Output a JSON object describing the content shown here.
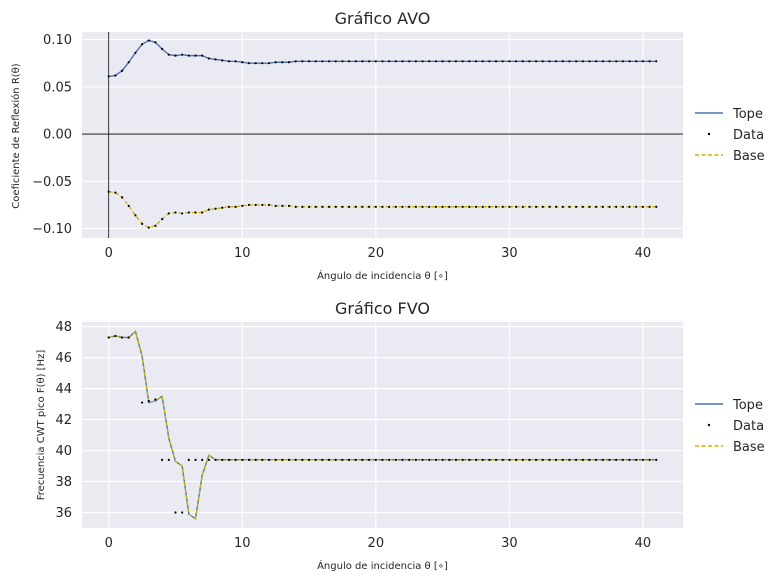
{
  "colors": {
    "background": "#eaeaf2",
    "grid": "#ffffff",
    "tope": "#4c72b0",
    "data": "#000000",
    "base": "#ccb300"
  },
  "chart_data": [
    {
      "type": "line",
      "title": "Gráfico AVO",
      "xlabel": "Ángulo de incidencia θ [∘]",
      "ylabel": "Coeficiente de Reflexión R(θ)",
      "xlim": [
        -2,
        43
      ],
      "ylim": [
        -0.11,
        0.108
      ],
      "xticks": [
        0,
        10,
        20,
        30,
        40
      ],
      "xtick_labels": [
        "0",
        "10",
        "20",
        "30",
        "40"
      ],
      "yticks": [
        0.1,
        0.05,
        0.0,
        -0.05,
        -0.1
      ],
      "ytick_labels": [
        "0.10",
        "0.05",
        "0.00",
        "−0.05",
        "−0.10"
      ],
      "reference_lines": {
        "x": 0,
        "y": 0
      },
      "legend": [
        "Tope",
        "Data",
        "Base"
      ],
      "legend_position": "right",
      "x": [
        0,
        0.5,
        1,
        1.5,
        2,
        2.5,
        3,
        3.5,
        4,
        4.5,
        5,
        5.5,
        6,
        6.5,
        7,
        7.5,
        8,
        8.5,
        9,
        9.5,
        10,
        10.5,
        11,
        11.5,
        12,
        12.5,
        13,
        13.5,
        14,
        14.5,
        15,
        15.5,
        16,
        16.5,
        17,
        17.5,
        18,
        18.5,
        19,
        19.5,
        20,
        20.5,
        21,
        21.5,
        22,
        22.5,
        23,
        23.5,
        24,
        24.5,
        25,
        25.5,
        26,
        26.5,
        27,
        27.5,
        28,
        28.5,
        29,
        29.5,
        30,
        30.5,
        31,
        31.5,
        32,
        32.5,
        33,
        33.5,
        34,
        34.5,
        35,
        35.5,
        36,
        36.5,
        37,
        37.5,
        38,
        38.5,
        39,
        39.5,
        40,
        40.5,
        41
      ],
      "series": [
        {
          "name": "Tope",
          "values": [
            0.061,
            0.062,
            0.067,
            0.076,
            0.086,
            0.095,
            0.099,
            0.097,
            0.09,
            0.084,
            0.083,
            0.084,
            0.083,
            0.083,
            0.083,
            0.08,
            0.079,
            0.078,
            0.077,
            0.077,
            0.076,
            0.075,
            0.075,
            0.075,
            0.075,
            0.076,
            0.076,
            0.076,
            0.077,
            0.077,
            0.077,
            0.077,
            0.077,
            0.077,
            0.077,
            0.077,
            0.077,
            0.077,
            0.077,
            0.077,
            0.077,
            0.077,
            0.077,
            0.077,
            0.077,
            0.077,
            0.077,
            0.077,
            0.077,
            0.077,
            0.077,
            0.077,
            0.077,
            0.077,
            0.077,
            0.077,
            0.077,
            0.077,
            0.077,
            0.077,
            0.077,
            0.077,
            0.077,
            0.077,
            0.077,
            0.077,
            0.077,
            0.077,
            0.077,
            0.077,
            0.077,
            0.077,
            0.077,
            0.077,
            0.077,
            0.077,
            0.077,
            0.077,
            0.077,
            0.077,
            0.077,
            0.077,
            0.077
          ]
        },
        {
          "name": "Base",
          "values": [
            -0.061,
            -0.062,
            -0.067,
            -0.076,
            -0.086,
            -0.095,
            -0.099,
            -0.097,
            -0.09,
            -0.084,
            -0.083,
            -0.084,
            -0.083,
            -0.083,
            -0.083,
            -0.08,
            -0.079,
            -0.078,
            -0.077,
            -0.077,
            -0.076,
            -0.075,
            -0.075,
            -0.075,
            -0.075,
            -0.076,
            -0.076,
            -0.076,
            -0.077,
            -0.077,
            -0.077,
            -0.077,
            -0.077,
            -0.077,
            -0.077,
            -0.077,
            -0.077,
            -0.077,
            -0.077,
            -0.077,
            -0.077,
            -0.077,
            -0.077,
            -0.077,
            -0.077,
            -0.077,
            -0.077,
            -0.077,
            -0.077,
            -0.077,
            -0.077,
            -0.077,
            -0.077,
            -0.077,
            -0.077,
            -0.077,
            -0.077,
            -0.077,
            -0.077,
            -0.077,
            -0.077,
            -0.077,
            -0.077,
            -0.077,
            -0.077,
            -0.077,
            -0.077,
            -0.077,
            -0.077,
            -0.077,
            -0.077,
            -0.077,
            -0.077,
            -0.077,
            -0.077,
            -0.077,
            -0.077,
            -0.077,
            -0.077,
            -0.077,
            -0.077,
            -0.077,
            -0.077
          ]
        }
      ],
      "data_points": {
        "name": "Data",
        "upper": [
          0.061,
          0.062,
          0.067,
          0.076,
          0.086,
          0.095,
          0.099,
          0.097,
          0.09,
          0.084,
          0.083,
          0.084,
          0.083,
          0.083,
          0.083,
          0.08,
          0.079,
          0.078,
          0.077,
          0.077,
          0.076,
          0.075,
          0.075,
          0.075,
          0.075,
          0.076,
          0.076,
          0.076,
          0.077,
          0.077,
          0.077,
          0.077,
          0.077,
          0.077,
          0.077,
          0.077,
          0.077,
          0.077,
          0.077,
          0.077,
          0.077,
          0.077,
          0.077,
          0.077,
          0.077,
          0.077,
          0.077,
          0.077,
          0.077,
          0.077,
          0.077,
          0.077,
          0.077,
          0.077,
          0.077,
          0.077,
          0.077,
          0.077,
          0.077,
          0.077,
          0.077,
          0.077,
          0.077,
          0.077,
          0.077,
          0.077,
          0.077,
          0.077,
          0.077,
          0.077,
          0.077,
          0.077,
          0.077,
          0.077,
          0.077,
          0.077,
          0.077,
          0.077,
          0.077,
          0.077,
          0.077,
          0.077,
          0.077
        ],
        "lower": [
          -0.061,
          -0.062,
          -0.067,
          -0.076,
          -0.086,
          -0.095,
          -0.099,
          -0.097,
          -0.09,
          -0.084,
          -0.083,
          -0.084,
          -0.083,
          -0.083,
          -0.083,
          -0.08,
          -0.079,
          -0.078,
          -0.077,
          -0.077,
          -0.076,
          -0.075,
          -0.075,
          -0.075,
          -0.075,
          -0.076,
          -0.076,
          -0.076,
          -0.077,
          -0.077,
          -0.077,
          -0.077,
          -0.077,
          -0.077,
          -0.077,
          -0.077,
          -0.077,
          -0.077,
          -0.077,
          -0.077,
          -0.077,
          -0.077,
          -0.077,
          -0.077,
          -0.077,
          -0.077,
          -0.077,
          -0.077,
          -0.077,
          -0.077,
          -0.077,
          -0.077,
          -0.077,
          -0.077,
          -0.077,
          -0.077,
          -0.077,
          -0.077,
          -0.077,
          -0.077,
          -0.077,
          -0.077,
          -0.077,
          -0.077,
          -0.077,
          -0.077,
          -0.077,
          -0.077,
          -0.077,
          -0.077,
          -0.077,
          -0.077,
          -0.077,
          -0.077,
          -0.077,
          -0.077,
          -0.077,
          -0.077,
          -0.077,
          -0.077,
          -0.077,
          -0.077,
          -0.077
        ]
      }
    },
    {
      "type": "line",
      "title": "Gráfico FVO",
      "xlabel": "Ángulo de incidencia θ [∘]",
      "ylabel": "Frecuencia CWT pico F(θ) [Hz]",
      "xlim": [
        -2,
        43
      ],
      "ylim": [
        35,
        48.3
      ],
      "xticks": [
        0,
        10,
        20,
        30,
        40
      ],
      "xtick_labels": [
        "0",
        "10",
        "20",
        "30",
        "40"
      ],
      "yticks": [
        48,
        46,
        44,
        42,
        40,
        38,
        36
      ],
      "ytick_labels": [
        "48",
        "46",
        "44",
        "42",
        "40",
        "38",
        "36"
      ],
      "legend": [
        "Tope",
        "Data",
        "Base"
      ],
      "legend_position": "right",
      "x": [
        0,
        0.5,
        1,
        1.5,
        2,
        2.5,
        3,
        3.5,
        4,
        4.5,
        5,
        5.5,
        6,
        6.5,
        7,
        7.5,
        8,
        8.5,
        9,
        9.5,
        10,
        10.5,
        11,
        11.5,
        12,
        12.5,
        13,
        13.5,
        14,
        14.5,
        15,
        15.5,
        16,
        16.5,
        17,
        17.5,
        18,
        18.5,
        19,
        19.5,
        20,
        20.5,
        21,
        21.5,
        22,
        22.5,
        23,
        23.5,
        24,
        24.5,
        25,
        25.5,
        26,
        26.5,
        27,
        27.5,
        28,
        28.5,
        29,
        29.5,
        30,
        30.5,
        31,
        31.5,
        32,
        32.5,
        33,
        33.5,
        34,
        34.5,
        35,
        35.5,
        36,
        36.5,
        37,
        37.5,
        38,
        38.5,
        39,
        39.5,
        40,
        40.5,
        41
      ],
      "series": [
        {
          "name": "Tope",
          "values": [
            47.3,
            47.4,
            47.3,
            47.3,
            47.7,
            46.1,
            43.1,
            43.2,
            43.5,
            40.8,
            39.3,
            39.0,
            35.9,
            35.6,
            38.4,
            39.7,
            39.4,
            39.4,
            39.4,
            39.4,
            39.4,
            39.4,
            39.4,
            39.4,
            39.4,
            39.4,
            39.4,
            39.4,
            39.4,
            39.4,
            39.4,
            39.4,
            39.4,
            39.4,
            39.4,
            39.4,
            39.4,
            39.4,
            39.4,
            39.4,
            39.4,
            39.4,
            39.4,
            39.4,
            39.4,
            39.4,
            39.4,
            39.4,
            39.4,
            39.4,
            39.4,
            39.4,
            39.4,
            39.4,
            39.4,
            39.4,
            39.4,
            39.4,
            39.4,
            39.4,
            39.4,
            39.4,
            39.4,
            39.4,
            39.4,
            39.4,
            39.4,
            39.4,
            39.4,
            39.4,
            39.4,
            39.4,
            39.4,
            39.4,
            39.4,
            39.4,
            39.4,
            39.4,
            39.4,
            39.4,
            39.4,
            39.4,
            39.4
          ]
        },
        {
          "name": "Base",
          "values": [
            47.3,
            47.4,
            47.3,
            47.3,
            47.7,
            46.1,
            43.1,
            43.2,
            43.5,
            40.8,
            39.3,
            39.0,
            35.9,
            35.6,
            38.4,
            39.7,
            39.4,
            39.4,
            39.4,
            39.4,
            39.4,
            39.4,
            39.4,
            39.4,
            39.4,
            39.4,
            39.4,
            39.4,
            39.4,
            39.4,
            39.4,
            39.4,
            39.4,
            39.4,
            39.4,
            39.4,
            39.4,
            39.4,
            39.4,
            39.4,
            39.4,
            39.4,
            39.4,
            39.4,
            39.4,
            39.4,
            39.4,
            39.4,
            39.4,
            39.4,
            39.4,
            39.4,
            39.4,
            39.4,
            39.4,
            39.4,
            39.4,
            39.4,
            39.4,
            39.4,
            39.4,
            39.4,
            39.4,
            39.4,
            39.4,
            39.4,
            39.4,
            39.4,
            39.4,
            39.4,
            39.4,
            39.4,
            39.4,
            39.4,
            39.4,
            39.4,
            39.4,
            39.4,
            39.4,
            39.4,
            39.4,
            39.4,
            39.4
          ]
        }
      ],
      "data_points": {
        "name": "Data",
        "points": [
          [
            0,
            47.3
          ],
          [
            0.5,
            47.4
          ],
          [
            1,
            47.3
          ],
          [
            1.5,
            47.3
          ],
          [
            2.5,
            43.1
          ],
          [
            3,
            43.2
          ],
          [
            3.5,
            43.3
          ],
          [
            4,
            39.4
          ],
          [
            4.5,
            39.4
          ],
          [
            5,
            36.0
          ],
          [
            5.5,
            36.0
          ],
          [
            6,
            39.4
          ],
          [
            6.5,
            39.4
          ],
          [
            7,
            39.4
          ],
          [
            7.5,
            39.4
          ],
          [
            8,
            39.4
          ],
          [
            8.5,
            39.4
          ],
          [
            9,
            39.4
          ],
          [
            9.5,
            39.4
          ],
          [
            10,
            39.4
          ],
          [
            10.5,
            39.4
          ],
          [
            11,
            39.4
          ],
          [
            11.5,
            39.4
          ],
          [
            12,
            39.4
          ],
          [
            12.5,
            39.4
          ],
          [
            13,
            39.4
          ],
          [
            13.5,
            39.4
          ],
          [
            14,
            39.4
          ],
          [
            14.5,
            39.4
          ],
          [
            15,
            39.4
          ],
          [
            15.5,
            39.4
          ],
          [
            16,
            39.4
          ],
          [
            16.5,
            39.4
          ],
          [
            17,
            39.4
          ],
          [
            17.5,
            39.4
          ],
          [
            18,
            39.4
          ],
          [
            18.5,
            39.4
          ],
          [
            19,
            39.4
          ],
          [
            19.5,
            39.4
          ],
          [
            20,
            39.4
          ],
          [
            20.5,
            39.4
          ],
          [
            21,
            39.4
          ],
          [
            21.5,
            39.4
          ],
          [
            22,
            39.4
          ],
          [
            22.5,
            39.4
          ],
          [
            23,
            39.4
          ],
          [
            23.5,
            39.4
          ],
          [
            24,
            39.4
          ],
          [
            24.5,
            39.4
          ],
          [
            25,
            39.4
          ],
          [
            25.5,
            39.4
          ],
          [
            26,
            39.4
          ],
          [
            26.5,
            39.4
          ],
          [
            27,
            39.4
          ],
          [
            27.5,
            39.4
          ],
          [
            28,
            39.4
          ],
          [
            28.5,
            39.4
          ],
          [
            29,
            39.4
          ],
          [
            29.5,
            39.4
          ],
          [
            30,
            39.4
          ],
          [
            30.5,
            39.4
          ],
          [
            31,
            39.4
          ],
          [
            31.5,
            39.4
          ],
          [
            32,
            39.4
          ],
          [
            32.5,
            39.4
          ],
          [
            33,
            39.4
          ],
          [
            33.5,
            39.4
          ],
          [
            34,
            39.4
          ],
          [
            34.5,
            39.4
          ],
          [
            35,
            39.4
          ],
          [
            35.5,
            39.4
          ],
          [
            36,
            39.4
          ],
          [
            36.5,
            39.4
          ],
          [
            37,
            39.4
          ],
          [
            37.5,
            39.4
          ],
          [
            38,
            39.4
          ],
          [
            38.5,
            39.4
          ],
          [
            39,
            39.4
          ],
          [
            39.5,
            39.4
          ],
          [
            40,
            39.4
          ],
          [
            40.5,
            39.4
          ],
          [
            41,
            39.4
          ]
        ]
      }
    }
  ]
}
